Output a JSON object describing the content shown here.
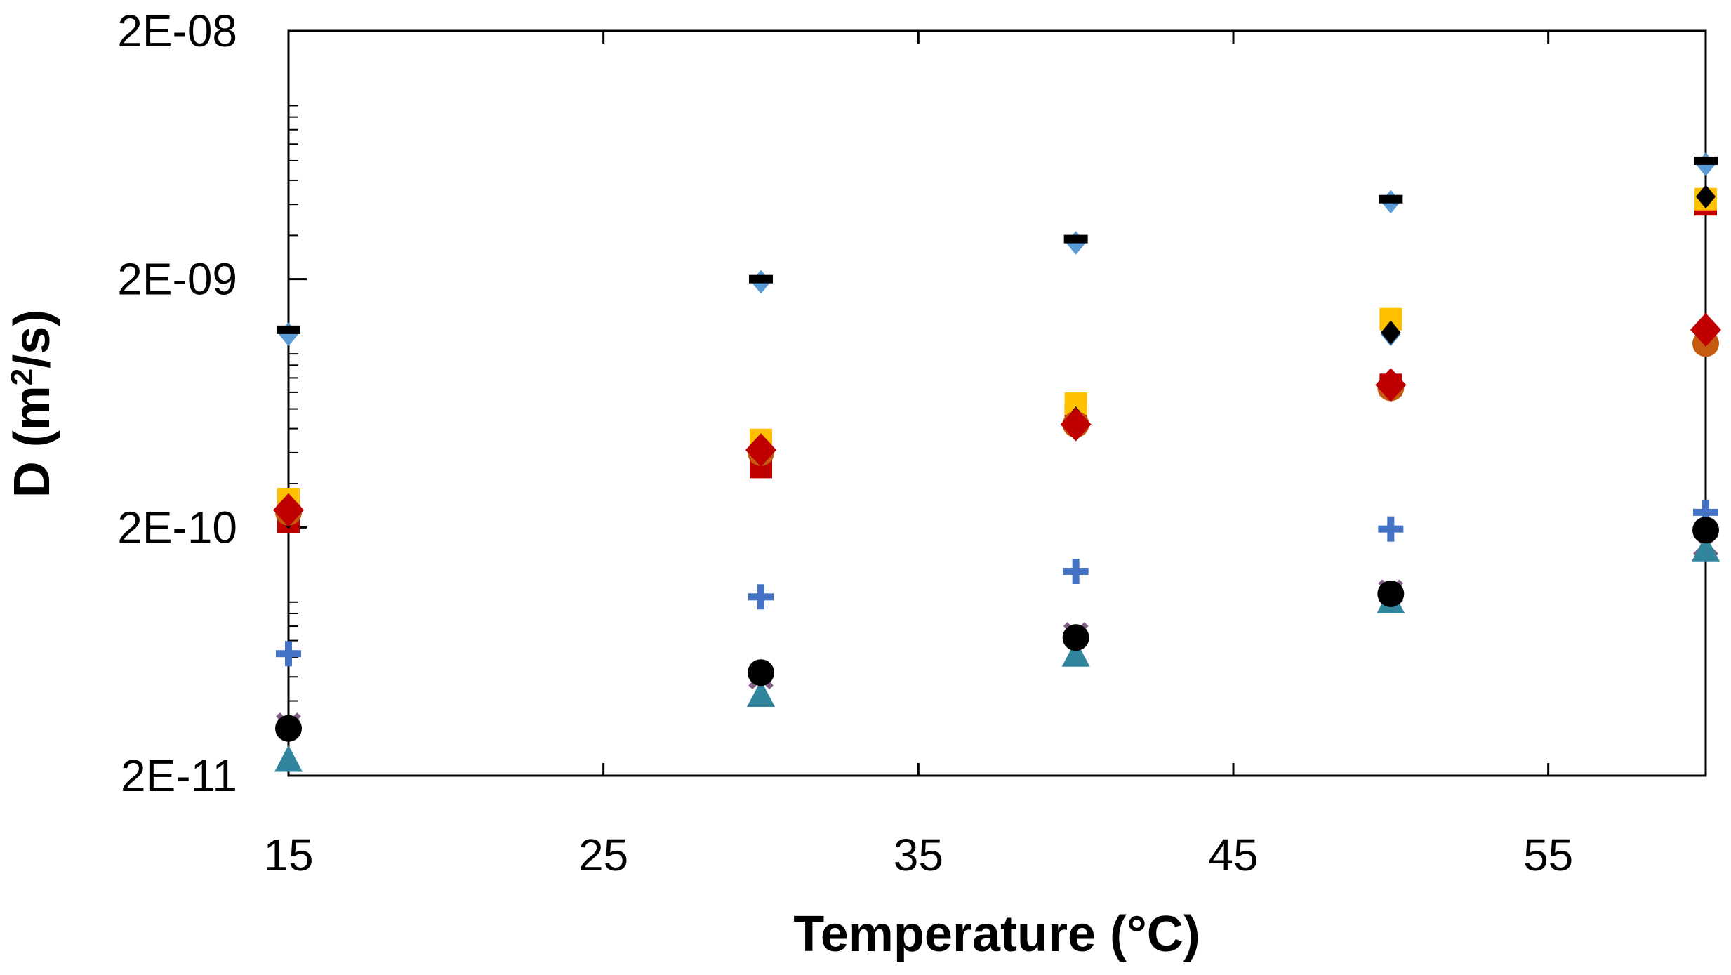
{
  "chart_data": {
    "type": "scatter",
    "title": "",
    "xlabel": "Temperature (°C)",
    "ylabel_prefix": "D (m",
    "ylabel_sup": "2",
    "ylabel_suffix": "/s)",
    "xlim": [
      15,
      60
    ],
    "ylim": [
      2e-11,
      2e-08
    ],
    "yscale": "log",
    "grid": false,
    "x_ticks": [
      15,
      25,
      35,
      45,
      55
    ],
    "x_tick_labels": [
      "15",
      "25",
      "35",
      "45",
      "55"
    ],
    "y_ticks": [
      2e-11,
      2e-10,
      2e-09,
      2e-08
    ],
    "y_tick_labels": [
      "2E-11",
      "2E-10",
      "2E-09",
      "2E-08"
    ],
    "x": [
      15,
      30,
      40,
      50,
      60
    ],
    "series": [
      {
        "color": "#5b9bd5",
        "marker": "diamond-small",
        "values": [
          1.2e-09,
          1.95e-09,
          2.8e-09,
          4.1e-09,
          5.8e-09
        ]
      },
      {
        "color": "#000000",
        "marker": "dash",
        "values": [
          1.25e-09,
          2e-09,
          2.9e-09,
          4.2e-09,
          6e-09
        ]
      },
      {
        "color": "#2e75b6",
        "marker": "diamond-small",
        "values": [
          2.1e-10,
          3.7e-10,
          5.7e-10,
          1.2e-09,
          4.1e-09
        ]
      },
      {
        "color": "#c00000",
        "marker": "square",
        "values": [
          2.1e-10,
          3.5e-10,
          5.6e-10,
          7.5e-10,
          4e-09
        ]
      },
      {
        "color": "#ffc000",
        "marker": "square",
        "values": [
          2.6e-10,
          4.5e-10,
          6.3e-10,
          1.38e-09,
          4.2e-09
        ]
      },
      {
        "color": "#000000",
        "marker": "diamond-small",
        "values": [
          2.2e-10,
          4.1e-10,
          5.5e-10,
          1.22e-09,
          4.3e-09
        ]
      },
      {
        "color": "#c55a11",
        "marker": "circle",
        "values": [
          2.3e-10,
          4e-10,
          5.2e-10,
          7.3e-10,
          1.1e-09
        ]
      },
      {
        "color": "#c00000",
        "marker": "diamond",
        "values": [
          2.35e-10,
          4.1e-10,
          5.2e-10,
          7.5e-10,
          1.25e-09
        ]
      },
      {
        "color": "#4472c4",
        "marker": "plus",
        "values": [
          6.2e-11,
          1.05e-10,
          1.33e-10,
          1.97e-10,
          2.3e-10
        ]
      },
      {
        "color": "#7f6084",
        "marker": "x",
        "values": [
          3.2e-11,
          5e-11,
          7.4e-11,
          1.1e-10,
          1.7e-10
        ]
      },
      {
        "color": "#31859c",
        "marker": "triangle",
        "values": [
          2.3e-11,
          4.2e-11,
          6.1e-11,
          1e-10,
          1.62e-10
        ]
      },
      {
        "color": "#000000",
        "marker": "circle",
        "values": [
          3.1e-11,
          5.2e-11,
          7.2e-11,
          1.08e-10,
          1.95e-10
        ]
      }
    ]
  }
}
